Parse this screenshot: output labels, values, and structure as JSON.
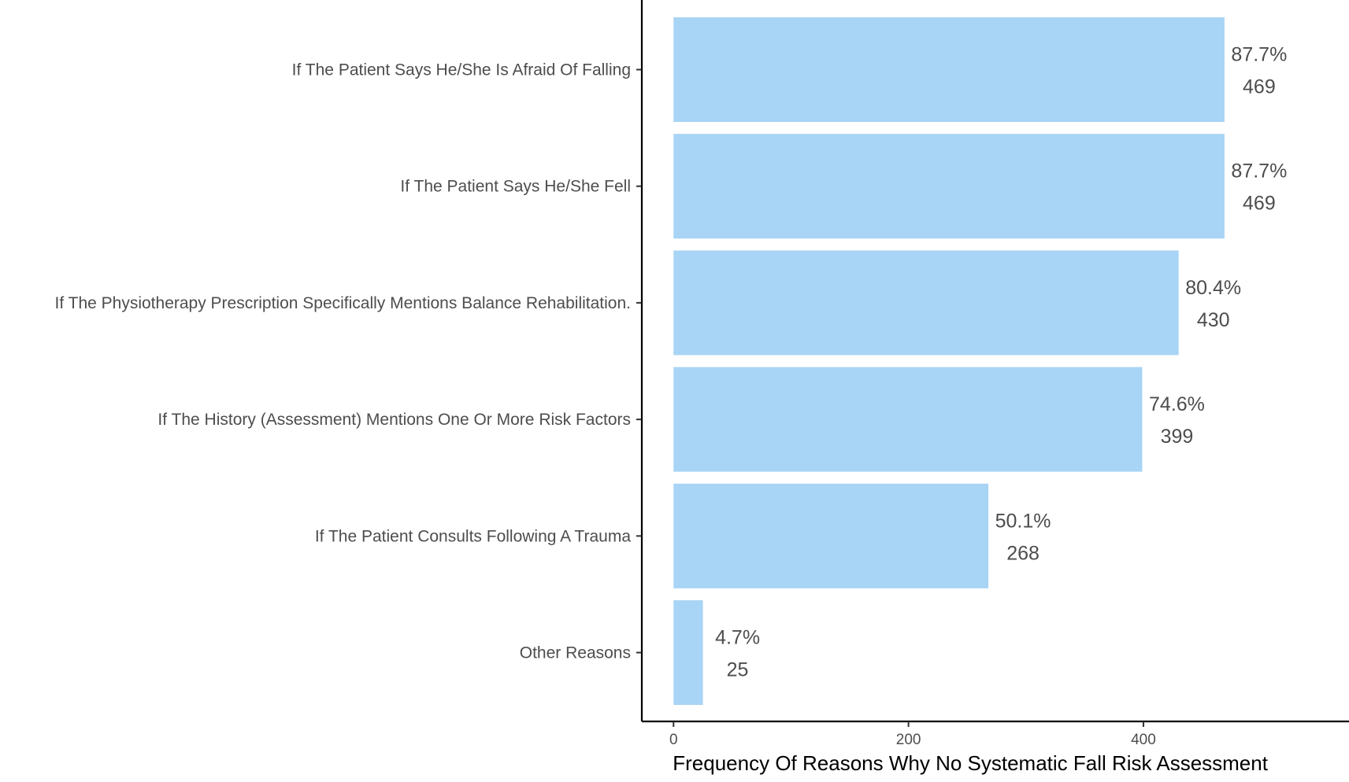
{
  "chart_data": {
    "type": "bar",
    "orientation": "horizontal",
    "categories": [
      "If The Patient Says He/She Is Afraid Of Falling",
      "If The Patient Says He/She Fell",
      "If The Physiotherapy Prescription Specifically Mentions Balance Rehabilitation.",
      "If The History (Assessment) Mentions One Or More Risk Factors",
      "If The Patient Consults Following A Trauma",
      "Other Reasons"
    ],
    "values": [
      469,
      469,
      430,
      399,
      268,
      25
    ],
    "percent_labels": [
      "87.7%",
      "87.7%",
      "80.4%",
      "74.6%",
      "50.1%",
      "4.7%"
    ],
    "count_labels": [
      "469",
      "469",
      "430",
      "399",
      "268",
      "25"
    ],
    "xlabel": "Frequency Of Reasons Why No Systematic Fall Risk Assessment",
    "ylabel": "",
    "title": "",
    "xlim": [
      -27,
      575
    ],
    "x_ticks": [
      0,
      200,
      400
    ],
    "x_tick_labels": [
      "0",
      "200",
      "400"
    ],
    "grid": false,
    "legend": "none",
    "colors": {
      "bar": "#a8d4f5",
      "axis": "#000000",
      "text": "#4d4d4d"
    }
  }
}
